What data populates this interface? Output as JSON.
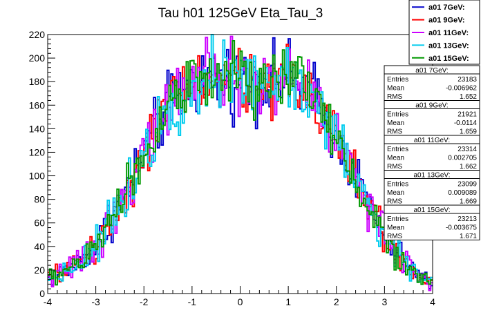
{
  "chart_data": {
    "type": "line",
    "style": "step-histogram",
    "title": "Tau h01 125GeV Eta_Tau_3",
    "xlabel": "",
    "ylabel": "",
    "xlim": [
      -4,
      4
    ],
    "ylim": [
      0,
      220
    ],
    "x_ticks": [
      -4,
      -3,
      -2,
      -1,
      0,
      1,
      2,
      3,
      4
    ],
    "y_ticks": [
      0,
      20,
      40,
      60,
      80,
      100,
      120,
      140,
      160,
      180,
      200,
      220
    ],
    "x_tick_labels": [
      "-4",
      "-3",
      "-2",
      "-1",
      "0",
      "1",
      "2",
      "3",
      "4"
    ],
    "y_tick_labels": [
      "0",
      "20",
      "40",
      "60",
      "80",
      "100",
      "120",
      "140",
      "160",
      "180",
      "200",
      "220"
    ],
    "bins": 200,
    "grid": false,
    "legend_position": "top-right",
    "shape": {
      "description": "approximately flat-top bell shape",
      "envelope": [
        [
          -4,
          12
        ],
        [
          -3.5,
          22
        ],
        [
          -3,
          40
        ],
        [
          -2.5,
          75
        ],
        [
          -2,
          120
        ],
        [
          -1.5,
          160
        ],
        [
          -1,
          178
        ],
        [
          -0.5,
          183
        ],
        [
          0,
          180
        ],
        [
          0.5,
          180
        ],
        [
          1,
          182
        ],
        [
          1.5,
          170
        ],
        [
          2,
          135
        ],
        [
          2.5,
          90
        ],
        [
          3,
          50
        ],
        [
          3.5,
          22
        ],
        [
          4,
          8
        ]
      ]
    },
    "series": [
      {
        "name": "a01 7GeV:",
        "color": "#0000cc",
        "entries": "23183",
        "mean": "-0.006962",
        "rms": "1.652"
      },
      {
        "name": "a01 9GeV:",
        "color": "#ff0000",
        "entries": "21921",
        "mean": "-0.0114",
        "rms": "1.659"
      },
      {
        "name": "a01 11GeV:",
        "color": "#cc00ff",
        "entries": "23314",
        "mean": "0.002705",
        "rms": "1.662"
      },
      {
        "name": "a01 13GeV:",
        "color": "#00ccee",
        "entries": "23099",
        "mean": "0.009089",
        "rms": "1.669"
      },
      {
        "name": "a01 15GeV:",
        "color": "#009900",
        "entries": "23213",
        "mean": "-0.003675",
        "rms": "1.671"
      }
    ],
    "stat_labels": {
      "entries": "Entries",
      "mean": "Mean",
      "rms": "RMS"
    }
  }
}
